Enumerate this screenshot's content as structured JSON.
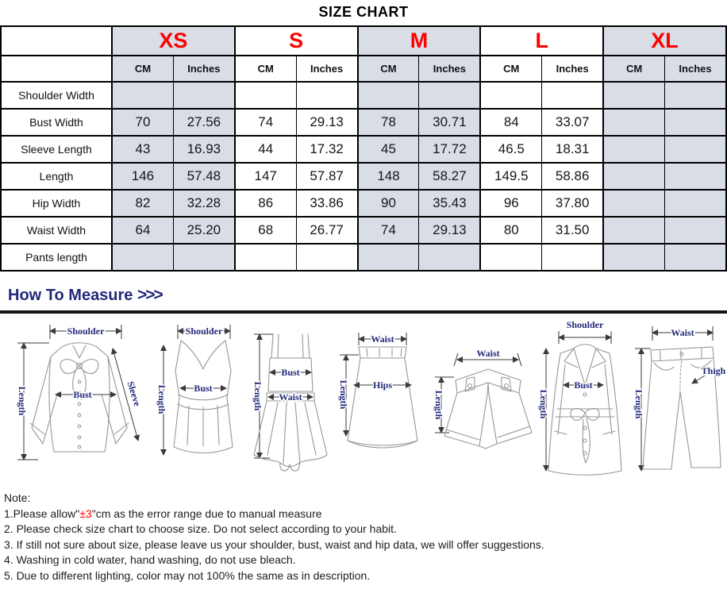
{
  "title": "SIZE CHART",
  "size_chart": {
    "sizes": [
      "XS",
      "S",
      "M",
      "L",
      "XL"
    ],
    "unit_headers": [
      "CM",
      "Inches"
    ],
    "rows": [
      {
        "label": "Shoulder Width",
        "values": [
          "",
          "",
          "",
          "",
          "",
          "",
          "",
          "",
          "",
          ""
        ]
      },
      {
        "label": "Bust Width",
        "values": [
          "70",
          "27.56",
          "74",
          "29.13",
          "78",
          "30.71",
          "84",
          "33.07",
          "",
          ""
        ]
      },
      {
        "label": "Sleeve Length",
        "values": [
          "43",
          "16.93",
          "44",
          "17.32",
          "45",
          "17.72",
          "46.5",
          "18.31",
          "",
          ""
        ]
      },
      {
        "label": "Length",
        "values": [
          "146",
          "57.48",
          "147",
          "57.87",
          "148",
          "58.27",
          "149.5",
          "58.86",
          "",
          ""
        ]
      },
      {
        "label": "Hip Width",
        "values": [
          "82",
          "32.28",
          "86",
          "33.86",
          "90",
          "35.43",
          "96",
          "37.80",
          "",
          ""
        ]
      },
      {
        "label": "Waist Width",
        "values": [
          "64",
          "25.20",
          "68",
          "26.77",
          "74",
          "29.13",
          "80",
          "31.50",
          "",
          ""
        ]
      },
      {
        "label": "Pants length",
        "values": [
          "",
          "",
          "",
          "",
          "",
          "",
          "",
          "",
          "",
          ""
        ]
      }
    ]
  },
  "how_to_measure": {
    "heading": "How To Measure",
    "arrows": ">>>",
    "figures": [
      {
        "garment": "blouse",
        "labels": {
          "shoulder": "Shoulder",
          "length": "Length",
          "bust": "Bust",
          "sleeve": "Sleeve"
        }
      },
      {
        "garment": "corset-top",
        "labels": {
          "shoulder": "Shoulder",
          "length": "Length",
          "bust": "Bust"
        }
      },
      {
        "garment": "dress",
        "labels": {
          "bust": "Bust",
          "waist": "Waist",
          "length": "Length"
        }
      },
      {
        "garment": "skirt",
        "labels": {
          "waist": "Waist",
          "hips": "Hips",
          "length": "Length"
        }
      },
      {
        "garment": "shorts",
        "labels": {
          "waist": "Waist",
          "length": "Length"
        }
      },
      {
        "garment": "coat",
        "labels": {
          "shoulder": "Shoulder",
          "bust": "Bust",
          "length": "Length"
        }
      },
      {
        "garment": "pants",
        "labels": {
          "waist": "Waist",
          "thigh": "Thigh",
          "length": "Length"
        }
      }
    ]
  },
  "notes": {
    "heading": "Note:",
    "item1": {
      "prefix": "1.Please allow\"",
      "highlight": "±3",
      "suffix": "\"cm as the error range due to manual measure"
    },
    "items": [
      "2. Please check size chart to choose size. Do not select according to your habit.",
      "3. If still not sure about size, please leave us your shoulder, bust, waist and hip data, we will offer suggestions.",
      "4. Washing in cold water, hand washing, do not use bleach.",
      "5. Due to different lighting, color may not 100% the same as in description."
    ]
  },
  "colors": {
    "size_label_red": "#ff0000",
    "shaded_column": "#d8dde6",
    "heading_navy": "#23297a",
    "note_highlight_red": "#ff0000"
  }
}
